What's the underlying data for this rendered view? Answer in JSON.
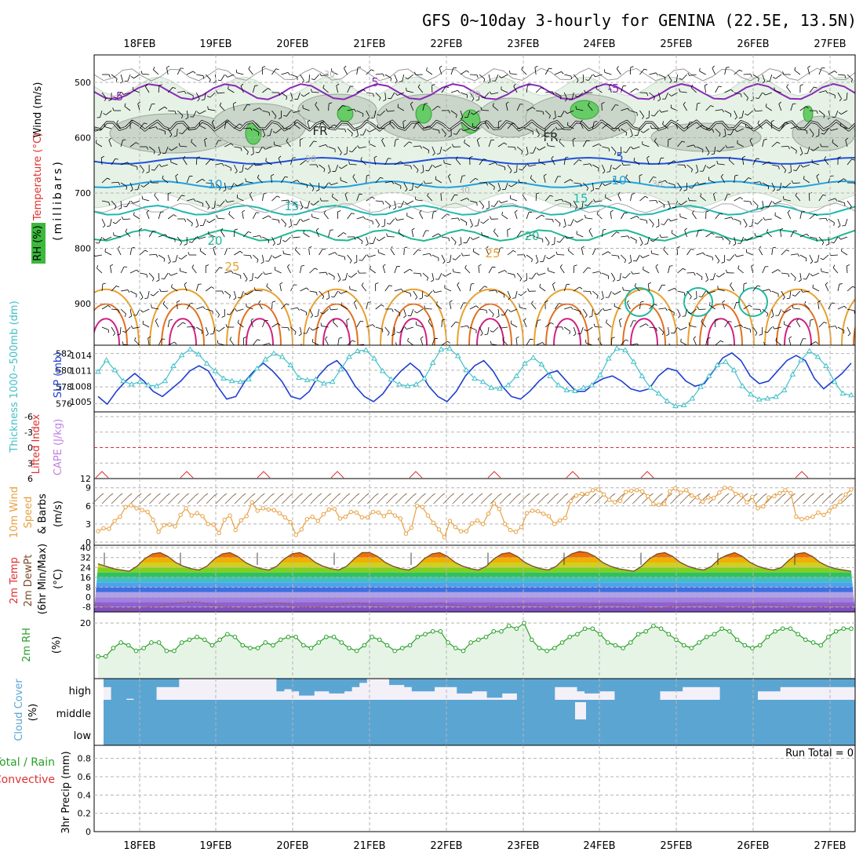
{
  "title": "GFS 0~10day 3-hourly for GENINA (22.5E, 13.5N)",
  "date_labels": [
    "18FEB",
    "19FEB",
    "20FEB",
    "21FEB",
    "22FEB",
    "23FEB",
    "24FEB",
    "25FEB",
    "26FEB",
    "27FEB"
  ],
  "colors": {
    "grid": "#b4b4b4",
    "slp": "#2040d0",
    "thickness": "#40c0c8",
    "wind10": "#e8a040",
    "temp": "#7a4a2a",
    "dewpt": "#9a5a5a",
    "rh": "#28a028",
    "rh_fill": "#e6f4e6",
    "cloud": "#5ba5d3",
    "cloud_bg": "#f4f0f8",
    "li": "#e03030",
    "cape": "#c080e0",
    "t_neg5": "#8a2ab8",
    "t_fr": "#222222",
    "t5": "#2050d8",
    "t10": "#20a0e0",
    "t15": "#20b8b0",
    "t20": "#20b890",
    "t25": "#e8a030",
    "t30": "#e07020",
    "t35": "#d02080"
  },
  "panels": {
    "upper": {
      "ylabel_wind": "Wind (m/s)",
      "ylabel_temp": "Temperature (°C)",
      "ylabel_rh": "RH (%)",
      "ylabel_unit": "(millibars)",
      "pressure_ticks": [
        "500",
        "600",
        "700",
        "800",
        "900"
      ],
      "contour_labels": [
        {
          "text": "-5",
          "color_key": "t_neg5"
        },
        {
          "text": "5",
          "color_key": "t_neg5"
        },
        {
          "text": "-5",
          "color_key": "t_neg5"
        },
        {
          "text": "FR",
          "color_key": "t_fr"
        },
        {
          "text": "FR",
          "color_key": "t_fr"
        },
        {
          "text": "5",
          "color_key": "t5"
        },
        {
          "text": "10",
          "color_key": "t10"
        },
        {
          "text": "10",
          "color_key": "t10"
        },
        {
          "text": "15",
          "color_key": "t15"
        },
        {
          "text": "15",
          "color_key": "t15"
        },
        {
          "text": "20",
          "color_key": "t20"
        },
        {
          "text": "20",
          "color_key": "t20"
        },
        {
          "text": "25",
          "color_key": "t25"
        },
        {
          "text": "25",
          "color_key": "t25"
        },
        {
          "text": "30",
          "color_key": "grid"
        },
        {
          "text": "50",
          "color_key": "grid"
        },
        {
          "text": "50",
          "color_key": "grid"
        },
        {
          "text": "30",
          "color_key": "grid"
        },
        {
          "text": "30",
          "color_key": "grid"
        }
      ]
    },
    "thickness_slp": {
      "ylabel_left": "Thickness 1000~500mb (dm)",
      "ylabel_right": "SLP (mb)",
      "left_ticks": [
        "582",
        "580",
        "578",
        "576"
      ],
      "right_ticks": [
        "1014",
        "1011",
        "1008",
        "1005"
      ]
    },
    "li_cape": {
      "ylabel_left": "Lifted Index",
      "ylabel_right": "CAPE (J/kg)",
      "li_ticks": [
        "-6",
        "-3",
        "0",
        "3",
        "6"
      ],
      "cape_ticks": [
        "12"
      ]
    },
    "wind10": {
      "ylabel_1": "10m Wind",
      "ylabel_2": "Speed",
      "ylabel_3": "& Barbs",
      "ylabel_unit": "(m/s)",
      "ticks": [
        "9",
        "6",
        "3",
        "0"
      ]
    },
    "temp2m": {
      "ylabel_1": "2m Temp",
      "ylabel_2": "2m DewPt",
      "ylabel_3": "(6hr Min/Max)",
      "ylabel_unit": "(°C)",
      "ticks": [
        "40",
        "32",
        "24",
        "16",
        "8",
        "0",
        "-8"
      ]
    },
    "rh2m": {
      "ylabel": "2m RH",
      "ylabel_unit": "(%)",
      "ticks": [
        "20"
      ]
    },
    "cloud": {
      "ylabel": "Cloud Cover",
      "ylabel_unit": "(%)",
      "levels": [
        "high",
        "middle",
        "low"
      ]
    },
    "precip": {
      "ylabel_1": "Total / Rain",
      "ylabel_2": "Convective",
      "ylabel_3": "3hr Precip (mm)",
      "ticks": [
        "0.8",
        "0.6",
        "0.4",
        "0.2",
        "0"
      ],
      "run_total": "Run Total = 0"
    }
  },
  "chart_data": [
    {
      "type": "line",
      "title": "Thickness 1000~500mb (dm) and SLP (mb)",
      "x_unit": "3-hourly steps from 17FEB 12Z",
      "series": [
        {
          "name": "SLP (mb)",
          "values": [
            1006,
            1004.5,
            1007,
            1009,
            1010.5,
            1009,
            1007,
            1006,
            1007.5,
            1009,
            1011,
            1012,
            1011,
            1008,
            1005.5,
            1006,
            1009,
            1011,
            1012.5,
            1011,
            1009,
            1006,
            1005.5,
            1007,
            1010,
            1012,
            1013,
            1011,
            1008,
            1006,
            1005,
            1006.5,
            1009,
            1011,
            1012.5,
            1011,
            1008,
            1006,
            1005,
            1007,
            1010,
            1012,
            1013,
            1011,
            1008,
            1006,
            1005.5,
            1007,
            1009,
            1010.5,
            1011,
            1009,
            1007,
            1007,
            1008.5,
            1009.5,
            1010,
            1009,
            1007.5,
            1007,
            1007.5,
            1010,
            1011.5,
            1011,
            1009,
            1008,
            1008.5,
            1011,
            1013.5,
            1014.5,
            1013,
            1010,
            1008.5,
            1009,
            1011,
            1013,
            1014,
            1013,
            1009.5,
            1007.5,
            1009,
            1010.5,
            1012.5
          ]
        },
        {
          "name": "Thickness (dm)",
          "values": [
            579.8,
            581.2,
            580.0,
            578.7,
            578.3,
            578.6,
            578.2,
            578.1,
            578.7,
            580.5,
            581.8,
            582.5,
            581.9,
            580.8,
            579.9,
            579.0,
            578.7,
            578.6,
            578.9,
            580.2,
            581.3,
            582.0,
            581.6,
            580.6,
            579.1,
            578.8,
            578.9,
            578.4,
            578.6,
            580.1,
            581.6,
            582.3,
            582.4,
            581.4,
            579.9,
            578.9,
            578.3,
            578.1,
            578.3,
            579.0,
            580.9,
            582.5,
            582.6,
            581.7,
            580.0,
            579.0,
            578.6,
            577.9,
            577.8,
            578.2,
            579.3,
            580.8,
            581.5,
            580.7,
            579.3,
            578.2,
            577.6,
            577.5,
            577.9,
            578.2,
            579.4,
            581.4,
            582.6,
            582.4,
            581.0,
            579.3,
            577.9,
            577.2,
            576.3,
            575.7,
            575.8,
            576.6,
            578.0,
            579.3,
            580.6,
            581.0,
            580.0,
            578.1,
            577.1,
            576.5,
            576.6,
            576.8,
            577.6,
            579.5,
            581.2,
            582.3,
            581.6,
            580.5,
            578.6,
            577.2,
            577.0
          ]
        }
      ],
      "left_ylim": [
        575,
        583
      ],
      "right_ylim": [
        1003,
        1016
      ]
    },
    {
      "type": "line",
      "title": "10m Wind Speed (m/s)",
      "series": [
        {
          "name": "Speed",
          "values": [
            1.8,
            2.3,
            2.2,
            3.5,
            4.2,
            5.8,
            6.1,
            5.6,
            5.3,
            5.0,
            3.7,
            1.7,
            2.8,
            2.9,
            2.6,
            4.5,
            5.6,
            4.4,
            4.8,
            4.3,
            3.0,
            2.9,
            1.5,
            3.7,
            4.4,
            2.0,
            3.6,
            4.3,
            6.6,
            5.2,
            5.6,
            5.4,
            5.3,
            4.8,
            4.1,
            3.3,
            1.2,
            2.1,
            3.8,
            4.2,
            3.5,
            4.6,
            5.4,
            5.5,
            3.9,
            4.2,
            5.0,
            4.9,
            4.1,
            4.1,
            5.0,
            4.9,
            4.3,
            5.0,
            4.4,
            3.9,
            1.4,
            2.4,
            6.0,
            5.8,
            4.4,
            3.2,
            2.1,
            0.8,
            3.5,
            2.5,
            1.8,
            1.8,
            3.1,
            3.6,
            3.0,
            4.7,
            6.4,
            5.5,
            3.0,
            2.0,
            1.7,
            2.5,
            4.8,
            5.2,
            5.1,
            4.7,
            4.3,
            3.0,
            3.6,
            4.0,
            6.8,
            7.7,
            8.0,
            8.0,
            8.6,
            8.7,
            7.9,
            7.0,
            6.6,
            6.8,
            8.3,
            8.5,
            8.6,
            8.4,
            7.6,
            6.3,
            6.2,
            6.3,
            8.4,
            8.9,
            8.2,
            8.6,
            7.7,
            7.4,
            6.7,
            7.4,
            7.3,
            8.2,
            9.0,
            8.9,
            8.0,
            7.8,
            6.6,
            7.5,
            5.6,
            5.9,
            7.4,
            7.6,
            8.1,
            8.6,
            8.1,
            4.2,
            3.8,
            4.0,
            4.2,
            4.9,
            4.5,
            5.2,
            5.9,
            6.7,
            7.9,
            8.7
          ]
        }
      ],
      "ylim": [
        0,
        10
      ]
    },
    {
      "type": "line",
      "title": "2m Temp / 2m DewPt (°C)",
      "series": [
        {
          "name": "2m Temp",
          "values": [
            27,
            25,
            23,
            22,
            21,
            25,
            31,
            35,
            36,
            33,
            28,
            25,
            23,
            22,
            25,
            31,
            35,
            36,
            33,
            28,
            25,
            23,
            22,
            25,
            31,
            35,
            36,
            33,
            28,
            25,
            23,
            22,
            25,
            31,
            36,
            36,
            33,
            28,
            25,
            23,
            22,
            25,
            31,
            35,
            36,
            33,
            28,
            25,
            23,
            22,
            25,
            31,
            35,
            36,
            33,
            28,
            25,
            23,
            22,
            25,
            31,
            35,
            37,
            36,
            33,
            28,
            25,
            23,
            22,
            21,
            25,
            31,
            35,
            36,
            33,
            28,
            25,
            23,
            22,
            25,
            31,
            34,
            36,
            33,
            28,
            25,
            23,
            22,
            24,
            30,
            35,
            36,
            33,
            28,
            25,
            23,
            22,
            21
          ]
        },
        {
          "name": "2m DewPt",
          "values": [
            -6,
            -8,
            -11,
            -10,
            -9,
            -8,
            -7,
            -6,
            -5,
            -4,
            -4,
            -6,
            -7,
            -8,
            -9,
            -7,
            -6,
            -5,
            -5,
            -6,
            -8,
            -8,
            -8,
            -7,
            -6,
            -5,
            -5,
            -6,
            -7,
            -8,
            -9,
            -8,
            -7,
            -6,
            -5,
            -6,
            -7,
            -8,
            -9,
            -8,
            -7,
            -7,
            -6,
            -6,
            -7,
            -8,
            -9,
            -9,
            -8,
            -7,
            -6,
            -6,
            -6,
            -7,
            -8,
            -9,
            -9,
            -8,
            -7,
            -6,
            -6,
            -7,
            -8,
            -9,
            -8,
            -7,
            -6,
            -6,
            -7,
            -8,
            -9,
            -9,
            -8,
            -7,
            -7,
            -8
          ]
        }
      ],
      "ylim": [
        -12,
        42
      ]
    },
    {
      "type": "line",
      "title": "2m RH (%)",
      "series": [
        {
          "name": "2m RH",
          "values": [
            8,
            8,
            11,
            13,
            12,
            10,
            11,
            13,
            13,
            10,
            10,
            13,
            14,
            15,
            14,
            12,
            14,
            16,
            15,
            12,
            11,
            11,
            13,
            12,
            14,
            15,
            15,
            12,
            11,
            13,
            15,
            15,
            13,
            11,
            10,
            12,
            15,
            14,
            12,
            10,
            11,
            12,
            15,
            16,
            17,
            17,
            13,
            11,
            10,
            13,
            14,
            15,
            17,
            17,
            19,
            18,
            20,
            14,
            11,
            10,
            11,
            13,
            15,
            16,
            18,
            18,
            16,
            13,
            12,
            11,
            13,
            16,
            17,
            19,
            18,
            16,
            14,
            12,
            11,
            13,
            15,
            16,
            18,
            17,
            14,
            12,
            11,
            12,
            15,
            17,
            18,
            18,
            16,
            14,
            13,
            12,
            15,
            17,
            18,
            18
          ]
        }
      ],
      "ylim": [
        0,
        24
      ]
    },
    {
      "type": "bar",
      "title": "Cloud Cover (%)",
      "series": [
        {
          "name": "high",
          "values": [
            40,
            100,
            100,
            95,
            100,
            100,
            100,
            40,
            40,
            40,
            0,
            0,
            0,
            0,
            0,
            0,
            0,
            0,
            0,
            0,
            0,
            0,
            0,
            60,
            50,
            60,
            80,
            80,
            60,
            60,
            70,
            70,
            60,
            40,
            20,
            0,
            0,
            0,
            30,
            30,
            40,
            60,
            60,
            60,
            40,
            40,
            40,
            70,
            70,
            60,
            60,
            90,
            90,
            70,
            70,
            100,
            100,
            100,
            100,
            100,
            40,
            40,
            40,
            60,
            70,
            70,
            60,
            60,
            100,
            100,
            100,
            100,
            100,
            100,
            60,
            60,
            60,
            40,
            40,
            40,
            40,
            40,
            100,
            100,
            100,
            100,
            100,
            60,
            60,
            60,
            40,
            40,
            40,
            40,
            40,
            40,
            40,
            40,
            40,
            40
          ]
        }
      ]
    },
    {
      "type": "bar",
      "title": "3hr Precip (mm)",
      "series": [
        {
          "name": "Total / Rain",
          "values": [
            0
          ]
        },
        {
          "name": "Convective",
          "values": [
            0
          ]
        }
      ],
      "ylim": [
        0,
        1
      ]
    }
  ]
}
